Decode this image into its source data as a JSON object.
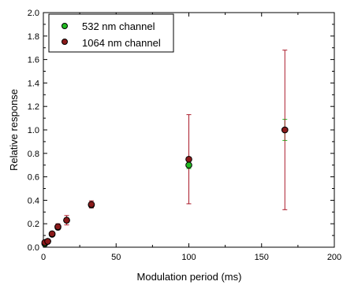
{
  "chart_data": {
    "type": "scatter",
    "xlabel": "Modulation period (ms)",
    "ylabel": "Relative response",
    "xlim": [
      0,
      200
    ],
    "ylim": [
      0,
      2.0
    ],
    "x_ticks": [
      0,
      50,
      100,
      150,
      200
    ],
    "y_ticks": [
      0.0,
      0.2,
      0.4,
      0.6,
      0.8,
      1.0,
      1.2,
      1.4,
      1.6,
      1.8,
      2.0
    ],
    "y_tick_labels": [
      "0.0",
      "0.2",
      "0.4",
      "0.6",
      "0.8",
      "1.0",
      "1.2",
      "1.4",
      "1.6",
      "1.8",
      "2.0"
    ],
    "legend_position": "top-left",
    "grid": false,
    "series": [
      {
        "name": "532 nm channel",
        "color": "#22bb22",
        "error_color": "#22bb22",
        "points": [
          {
            "x": 1,
            "y": 0.03,
            "err": 0.01
          },
          {
            "x": 3,
            "y": 0.05,
            "err": 0.01
          },
          {
            "x": 6,
            "y": 0.11,
            "err": 0.01
          },
          {
            "x": 10,
            "y": 0.17,
            "err": 0.02
          },
          {
            "x": 16,
            "y": 0.23,
            "err": 0.02
          },
          {
            "x": 33,
            "y": 0.36,
            "err": 0.02
          },
          {
            "x": 100,
            "y": 0.7,
            "err": 0.03
          },
          {
            "x": 166,
            "y": 1.0,
            "err": 0.09
          }
        ]
      },
      {
        "name": "1064 nm channel",
        "color": "#8b1a1a",
        "error_color": "#aa1a2a",
        "points": [
          {
            "x": 1,
            "y": 0.04,
            "err": 0.02
          },
          {
            "x": 3,
            "y": 0.05,
            "err": 0.01
          },
          {
            "x": 6,
            "y": 0.115,
            "err": 0.015
          },
          {
            "x": 10,
            "y": 0.175,
            "err": 0.025
          },
          {
            "x": 16,
            "y": 0.23,
            "err": 0.04
          },
          {
            "x": 33,
            "y": 0.365,
            "err": 0.03
          },
          {
            "x": 100,
            "y": 0.75,
            "err": 0.38
          },
          {
            "x": 166,
            "y": 1.0,
            "err": 0.68
          }
        ]
      }
    ]
  }
}
